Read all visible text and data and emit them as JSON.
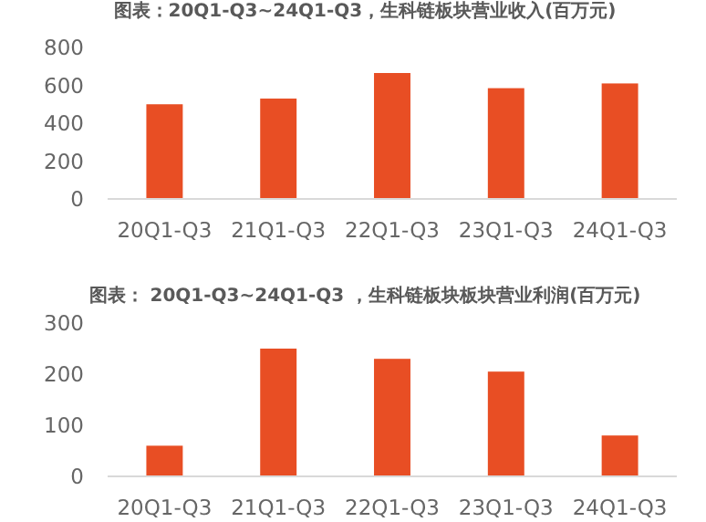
{
  "chart_data": [
    {
      "type": "bar",
      "title": "图表：20Q1-Q3~24Q1-Q3，生科链板块营业收入(百万元)",
      "categories": [
        "20Q1-Q3",
        "21Q1-Q3",
        "22Q1-Q3",
        "23Q1-Q3",
        "24Q1-Q3"
      ],
      "values": [
        500,
        530,
        665,
        585,
        610
      ],
      "color": "#e84e24",
      "ylim": [
        0,
        800
      ],
      "yticks": [
        0,
        200,
        400,
        600,
        800
      ]
    },
    {
      "type": "bar",
      "title": "图表： 20Q1-Q3~24Q1-Q3 ，生科链板块板块营业利润(百万元)",
      "categories": [
        "20Q1-Q3",
        "21Q1-Q3",
        "22Q1-Q3",
        "23Q1-Q3",
        "24Q1-Q3"
      ],
      "values": [
        60,
        250,
        230,
        205,
        80
      ],
      "color": "#e84e24",
      "ylim": [
        0,
        300
      ],
      "yticks": [
        0,
        100,
        200,
        300
      ]
    }
  ]
}
